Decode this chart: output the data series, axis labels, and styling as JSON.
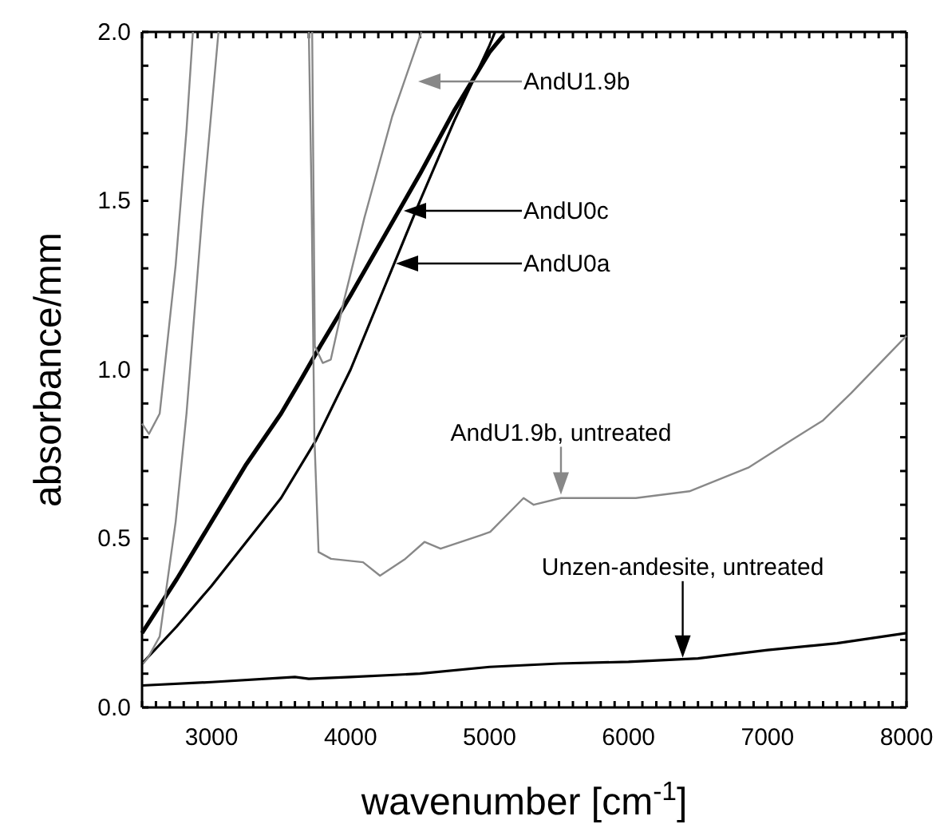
{
  "chart_data": {
    "type": "line",
    "xlabel": "wavenumber [cm$^{-1}$]",
    "ylabel": "absorbance/mm",
    "xlim": [
      2500,
      8000
    ],
    "ylim": [
      0,
      2
    ],
    "xticks": [
      {
        "value": 2500,
        "label": null
      },
      {
        "value": 2600,
        "label": null
      },
      {
        "value": 2700,
        "label": null
      },
      {
        "value": 2800,
        "label": null
      },
      {
        "value": 2900,
        "label": null
      },
      3000,
      {
        "value": 3100,
        "label": null
      },
      {
        "value": 3200,
        "label": null
      },
      {
        "value": 3300,
        "label": null
      },
      {
        "value": 3400,
        "label": null
      },
      {
        "value": 3500,
        "label": null
      },
      {
        "value": 3600,
        "label": null
      },
      {
        "value": 3700,
        "label": null
      },
      {
        "value": 3800,
        "label": null
      },
      {
        "value": 3900,
        "label": null
      },
      4000,
      {
        "value": 4100,
        "label": null
      },
      {
        "value": 4200,
        "label": null
      },
      {
        "value": 4300,
        "label": null
      },
      {
        "value": 4400,
        "label": null
      },
      {
        "value": 4500,
        "label": null
      },
      {
        "value": 4600,
        "label": null
      },
      {
        "value": 4700,
        "label": null
      },
      {
        "value": 4800,
        "label": null
      },
      {
        "value": 4900,
        "label": null
      },
      5000,
      {
        "value": 5100,
        "label": null
      },
      {
        "value": 5200,
        "label": null
      },
      {
        "value": 5300,
        "label": null
      },
      {
        "value": 5400,
        "label": null
      },
      {
        "value": 5500,
        "label": null
      },
      {
        "value": 5600,
        "label": null
      },
      {
        "value": 5700,
        "label": null
      },
      {
        "value": 5800,
        "label": null
      },
      {
        "value": 5900,
        "label": null
      },
      6000,
      {
        "value": 6100,
        "label": null
      },
      {
        "value": 6200,
        "label": null
      },
      {
        "value": 6300,
        "label": null
      },
      {
        "value": 6400,
        "label": null
      },
      {
        "value": 6500,
        "label": null
      },
      {
        "value": 6600,
        "label": null
      },
      {
        "value": 6700,
        "label": null
      },
      {
        "value": 6800,
        "label": null
      },
      {
        "value": 6900,
        "label": null
      },
      7000,
      {
        "value": 7100,
        "label": null
      },
      {
        "value": 7200,
        "label": null
      },
      {
        "value": 7300,
        "label": null
      },
      {
        "value": 7400,
        "label": null
      },
      {
        "value": 7500,
        "label": null
      },
      {
        "value": 7600,
        "label": null
      },
      {
        "value": 7700,
        "label": null
      },
      {
        "value": 7800,
        "label": null
      },
      {
        "value": 7900,
        "label": null
      },
      8000
    ],
    "yticks": [
      {
        "value": 0,
        "label": "0.0"
      },
      {
        "value": 0.1,
        "label": null
      },
      {
        "value": 0.2,
        "label": null
      },
      {
        "value": 0.3,
        "label": null
      },
      {
        "value": 0.4,
        "label": null
      },
      0.5,
      {
        "value": 0.6,
        "label": null
      },
      {
        "value": 0.7,
        "label": null
      },
      {
        "value": 0.8,
        "label": null
      },
      {
        "value": 0.9,
        "label": null
      },
      {
        "value": 1,
        "label": "1.0"
      },
      {
        "value": 1.1,
        "label": null
      },
      {
        "value": 1.2,
        "label": null
      },
      {
        "value": 1.3,
        "label": null
      },
      {
        "value": 1.4,
        "label": null
      },
      1.5,
      {
        "value": 1.6,
        "label": null
      },
      {
        "value": 1.7,
        "label": null
      },
      {
        "value": 1.8,
        "label": null
      },
      {
        "value": 1.9,
        "label": null
      },
      {
        "value": 2,
        "label": "2.0"
      }
    ],
    "grid": false,
    "marker": "none",
    "line_style": "solid",
    "series": [
      {
        "color": "#000000",
        "x": [
          2500,
          2750,
          3000,
          3250,
          3500,
          3643,
          3782,
          4000,
          4250,
          4500,
          4750,
          5000,
          5100
        ],
        "values": [
          0.22,
          0.38,
          0.55,
          0.72,
          0.87,
          0.97,
          1.07,
          1.22,
          1.4,
          1.58,
          1.77,
          1.94,
          1.99
        ]
      },
      {
        "color": "#000000",
        "x": [
          2500,
          2750,
          3000,
          3250,
          3500,
          3750,
          4000,
          4250,
          4500,
          4750,
          5000,
          5040
        ],
        "values": [
          0.13,
          0.24,
          0.36,
          0.49,
          0.62,
          0.79,
          1.0,
          1.25,
          1.5,
          1.74,
          1.96,
          2.0
        ]
      },
      {
        "color": "#888888",
        "x": [
          2500,
          2550,
          2627,
          2742,
          2820,
          2866,
          3300,
          3724,
          3743,
          3800,
          3858,
          3950,
          4100,
          4300,
          4510
        ],
        "values": [
          0.84,
          0.81,
          0.87,
          1.31,
          1.71,
          2.0,
          null,
          2.0,
          1.07,
          1.02,
          1.03,
          1.2,
          1.45,
          1.75,
          2.0
        ]
      },
      {
        "color": "#888888",
        "x": [
          2510,
          2546,
          2627,
          2742,
          2820,
          2935,
          3050,
          3400,
          3700,
          3720,
          3740,
          3770,
          3860,
          4090,
          4212,
          4394,
          4532,
          4648,
          4937,
          5005,
          5245,
          5318,
          5514,
          6053,
          6438,
          6862,
          7168,
          7400,
          7600,
          8000
        ],
        "values": [
          0.13,
          0.15,
          0.21,
          0.55,
          0.87,
          1.47,
          2.0,
          null,
          2.0,
          1.5,
          0.8,
          0.46,
          0.44,
          0.43,
          0.39,
          0.44,
          0.49,
          0.47,
          0.51,
          0.52,
          0.62,
          0.6,
          0.62,
          0.62,
          0.64,
          0.71,
          0.79,
          0.85,
          0.93,
          1.1
        ]
      },
      {
        "color": "#000000",
        "x": [
          2500,
          3000,
          3600,
          3700,
          4000,
          4500,
          5000,
          5500,
          6000,
          6500,
          7000,
          7500,
          8000
        ],
        "values": [
          0.065,
          0.075,
          0.09,
          0.085,
          0.09,
          0.1,
          0.12,
          0.13,
          0.135,
          0.145,
          0.17,
          0.19,
          0.22
        ]
      }
    ],
    "annotations": [
      "AndU1.9b",
      "AndU0c",
      "AndU0a",
      {
        "text": "AndU1.9b, untreated",
        "x": 5514,
        "y": 0.63
      },
      {
        "text": "Unzen-andesite, untreated",
        "x": 6390,
        "y": 0.147
      }
    ]
  }
}
